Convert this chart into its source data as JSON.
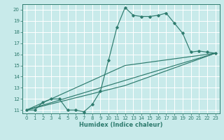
{
  "xlabel": "Humidex (Indice chaleur)",
  "background_color": "#c8eaea",
  "grid_color": "#ffffff",
  "line_color": "#2e7b6e",
  "xlim": [
    -0.5,
    23.5
  ],
  "ylim": [
    10.7,
    20.5
  ],
  "xticks": [
    0,
    1,
    2,
    3,
    4,
    5,
    6,
    7,
    8,
    9,
    10,
    11,
    12,
    13,
    14,
    15,
    16,
    17,
    18,
    19,
    20,
    21,
    22,
    23
  ],
  "yticks": [
    11,
    12,
    13,
    14,
    15,
    16,
    17,
    18,
    19,
    20
  ],
  "series_main": {
    "x": [
      0,
      1,
      2,
      3,
      4,
      5,
      6,
      7,
      8,
      9,
      10,
      11,
      12,
      13,
      14,
      15,
      16,
      17,
      18,
      19,
      20,
      21,
      22,
      23
    ],
    "y": [
      11,
      11,
      11.7,
      12,
      12,
      11,
      11,
      10.85,
      11.5,
      12.7,
      15.5,
      18.4,
      20.2,
      19.5,
      19.4,
      19.4,
      19.5,
      19.7,
      18.8,
      17.9,
      16.2,
      16.3,
      16.2,
      16.1
    ]
  },
  "series_lines": [
    {
      "x": [
        0,
        23
      ],
      "y": [
        11,
        16.1
      ]
    },
    {
      "x": [
        0,
        12,
        23
      ],
      "y": [
        11,
        15.0,
        16.1
      ]
    },
    {
      "x": [
        0,
        12,
        23
      ],
      "y": [
        11,
        13.2,
        16.1
      ]
    }
  ],
  "xlabel_fontsize": 6.0,
  "tick_fontsize": 5.0
}
